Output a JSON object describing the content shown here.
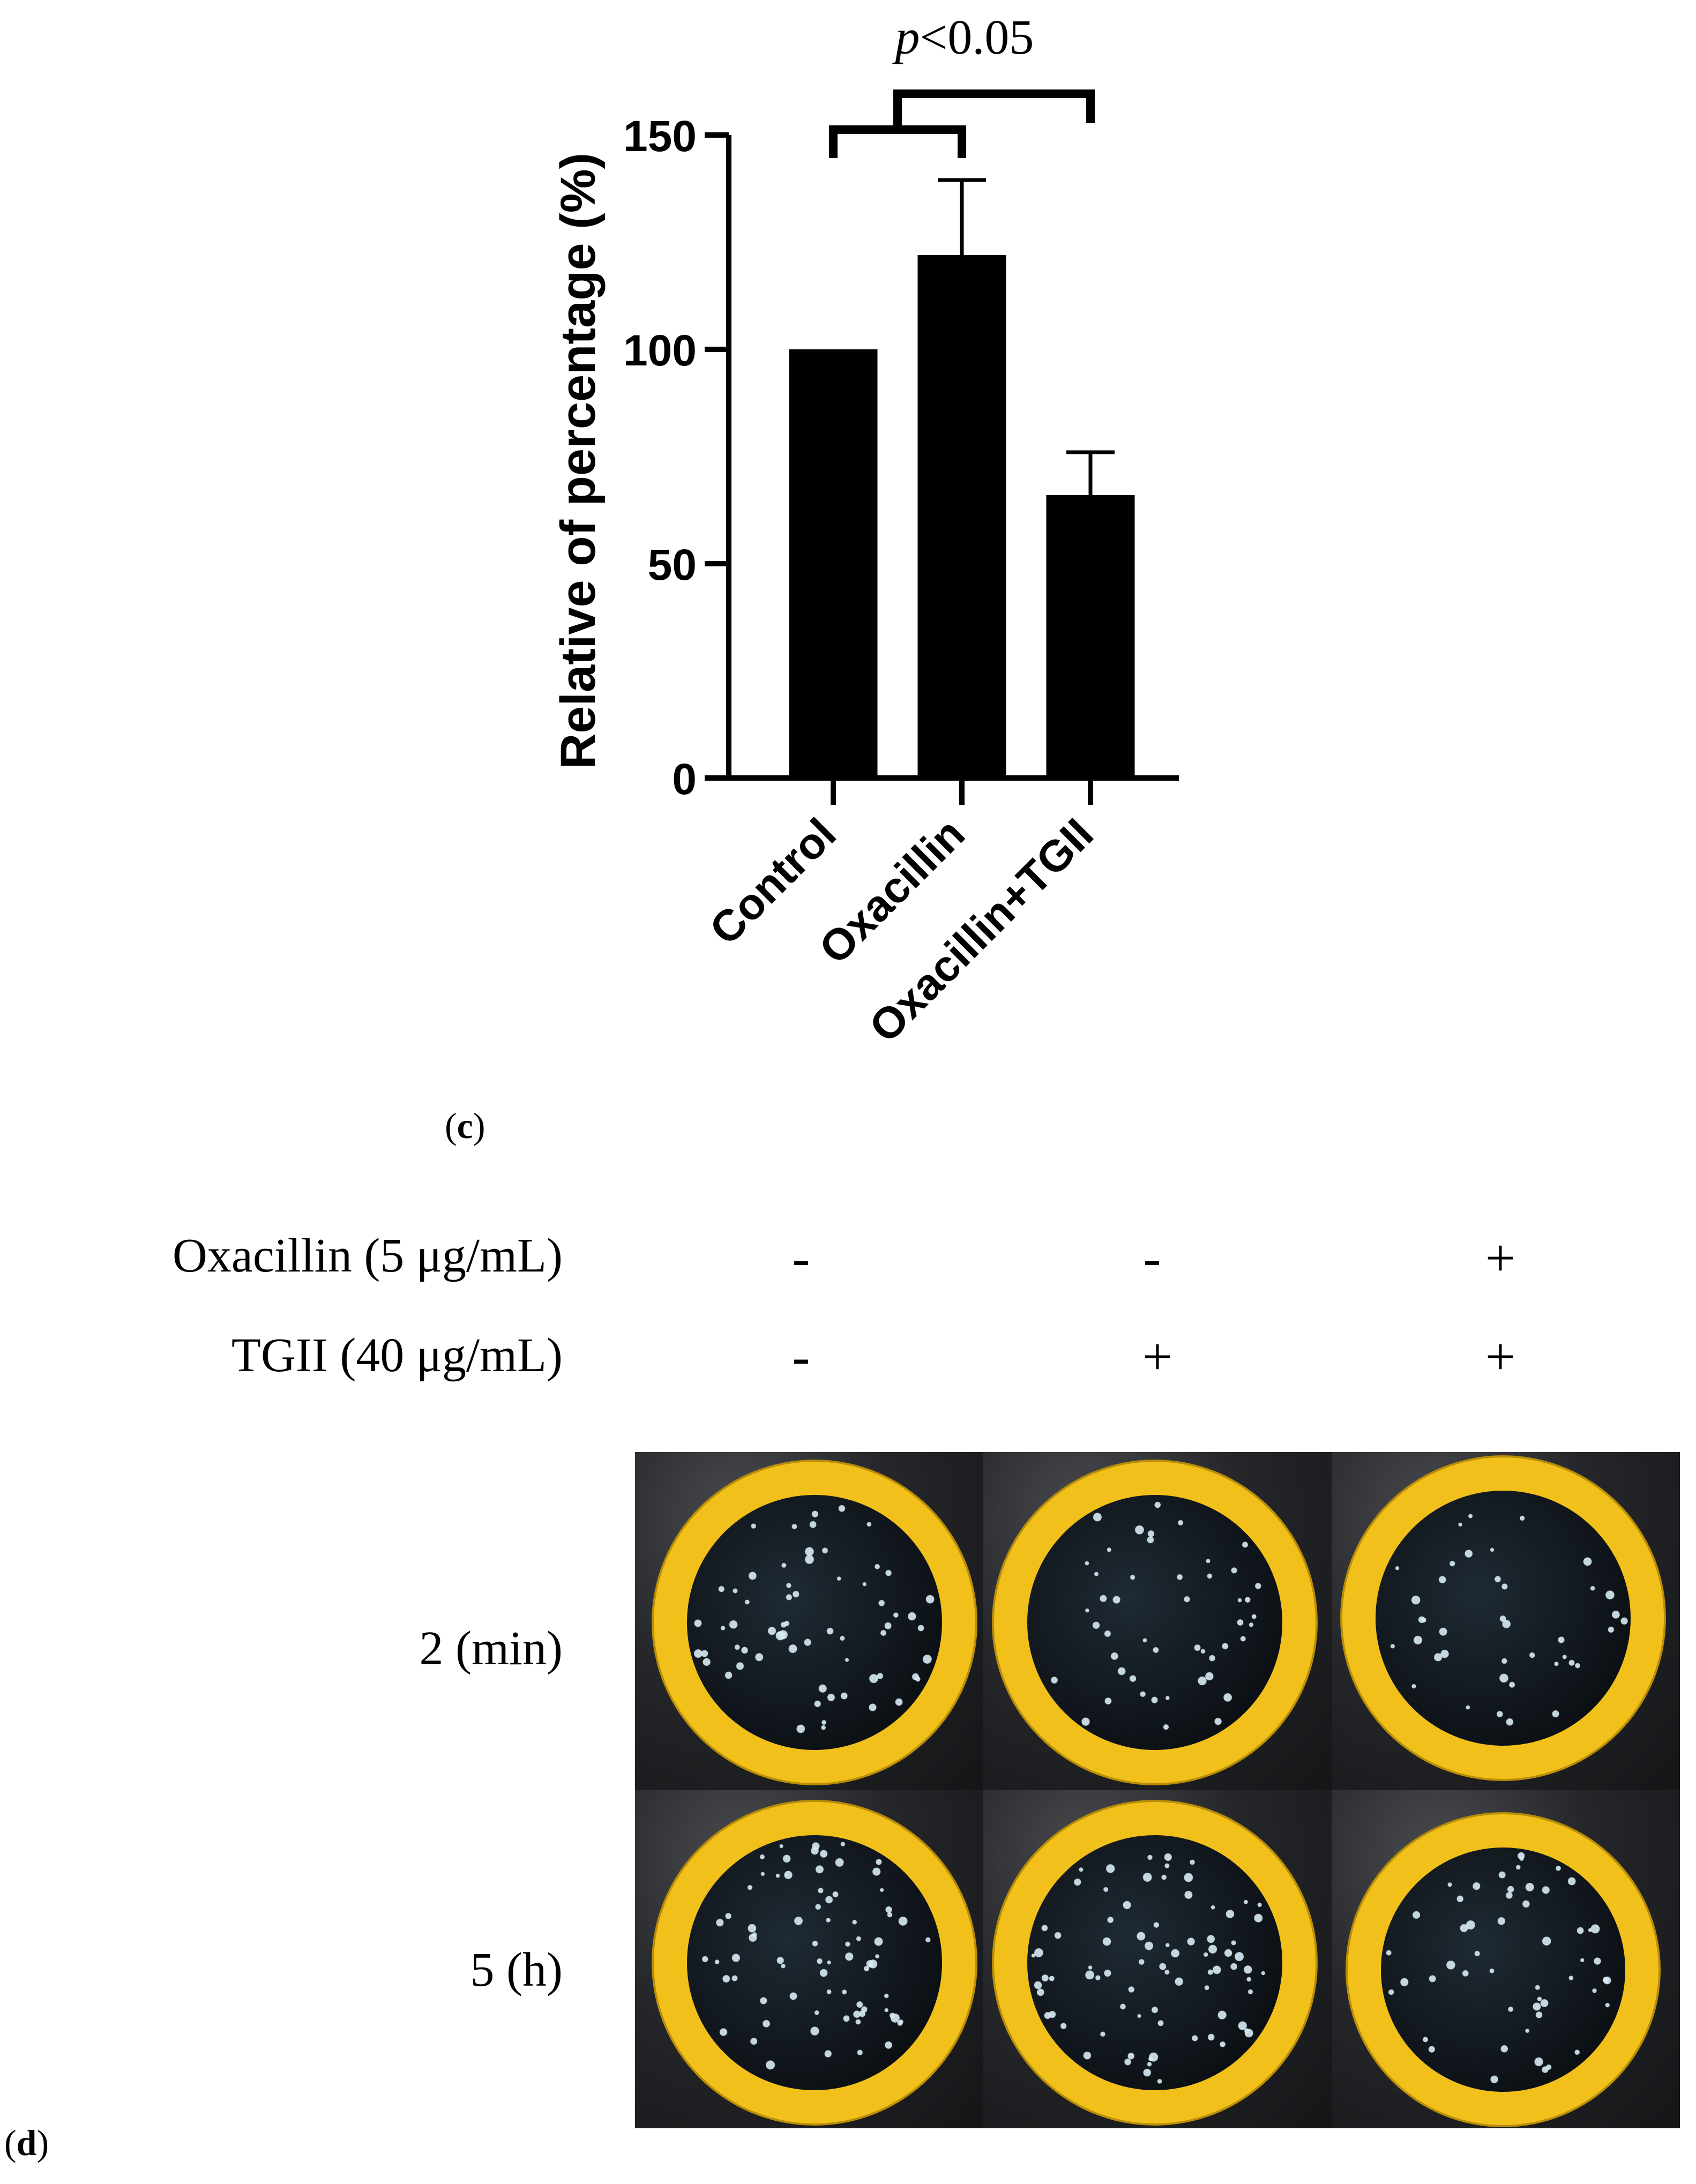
{
  "panel_c": {
    "label_open": "(",
    "label_letter": "c",
    "label_close": ")",
    "significance_italic": "p",
    "significance_rest": "<0.05"
  },
  "chart_data": {
    "type": "bar",
    "categories": [
      "Control",
      "Oxacillin",
      "Oxacillin+TGII"
    ],
    "values": [
      100,
      122,
      66
    ],
    "error_upper": [
      0,
      17.5,
      10
    ],
    "ylabel": "Relative of percentage  (%)",
    "xlabel": "",
    "ylim": [
      0,
      150
    ],
    "yticks": [
      0,
      50,
      100,
      150
    ],
    "bar_color": "#000000",
    "grid": false,
    "significance": {
      "text": "p<0.05",
      "left_group": [
        "Control",
        "Oxacillin"
      ],
      "right_group": [
        "Oxacillin+TGII"
      ]
    }
  },
  "panel_d": {
    "label_open": "(",
    "label_letter": "d",
    "label_close": ")",
    "treatment_rows": [
      {
        "label": "Oxacillin (5 μg/mL)",
        "signs": [
          "-",
          "-",
          "+"
        ]
      },
      {
        "label": "TGII (40 μg/mL)",
        "signs": [
          "-",
          "+",
          "+"
        ]
      }
    ],
    "time_rows": [
      {
        "label": "2 (min)"
      },
      {
        "label": "5 (h)"
      }
    ],
    "plates": [
      {
        "name": "plate-2min-control",
        "colony_density": 0.55,
        "ring_color": "#f2c01b"
      },
      {
        "name": "plate-2min-tgii",
        "colony_density": 0.35,
        "ring_color": "#f2c01b"
      },
      {
        "name": "plate-2min-oxacillin-tgii",
        "colony_density": 0.25,
        "ring_color": "#f2c01b"
      },
      {
        "name": "plate-5h-control",
        "colony_density": 0.7,
        "ring_color": "#f2c01b"
      },
      {
        "name": "plate-5h-tgii",
        "colony_density": 0.75,
        "ring_color": "#f2c01b"
      },
      {
        "name": "plate-5h-oxacillin-tgii",
        "colony_density": 0.4,
        "ring_color": "#f2c01b"
      }
    ]
  }
}
